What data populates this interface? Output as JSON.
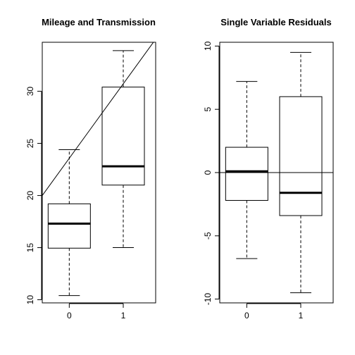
{
  "chart_data": [
    {
      "type": "boxplot",
      "title": "Mileage and Transmission",
      "xlabel": "",
      "ylabel": "",
      "categories": [
        "0",
        "1"
      ],
      "boxes": [
        {
          "category": "0",
          "lower_whisker": 10.4,
          "q1": 14.95,
          "median": 17.3,
          "q3": 19.2,
          "upper_whisker": 24.4
        },
        {
          "category": "1",
          "lower_whisker": 15.0,
          "q1": 21.0,
          "median": 22.8,
          "q3": 30.4,
          "upper_whisker": 33.9
        }
      ],
      "reference_line": {
        "x": [
          0.5,
          2.6
        ],
        "y": [
          20.0,
          35.0
        ]
      },
      "xlim": [
        0.5,
        2.6
      ],
      "ylim": [
        9.7,
        34.7
      ],
      "yticks": [
        "10",
        "15",
        "20",
        "25",
        "30"
      ],
      "xticks": [
        "0",
        "1"
      ],
      "grid": false,
      "legend": "none"
    },
    {
      "type": "boxplot",
      "title": "Single Variable Residuals",
      "xlabel": "",
      "ylabel": "",
      "categories": [
        "0",
        "1"
      ],
      "boxes": [
        {
          "category": "0",
          "lower_whisker": -6.8,
          "q1": -2.2,
          "median": 0.1,
          "q3": 2.0,
          "upper_whisker": 7.2
        },
        {
          "category": "1",
          "lower_whisker": -9.5,
          "q1": -3.4,
          "median": -1.6,
          "q3": 6.0,
          "upper_whisker": 9.5
        }
      ],
      "reference_line": {
        "h": 0
      },
      "xlim": [
        0.5,
        2.6
      ],
      "ylim": [
        -10.3,
        10.3
      ],
      "yticks": [
        "-10",
        "-5",
        "0",
        "5",
        "10"
      ],
      "xticks": [
        "0",
        "1"
      ],
      "grid": false,
      "legend": "none"
    }
  ]
}
